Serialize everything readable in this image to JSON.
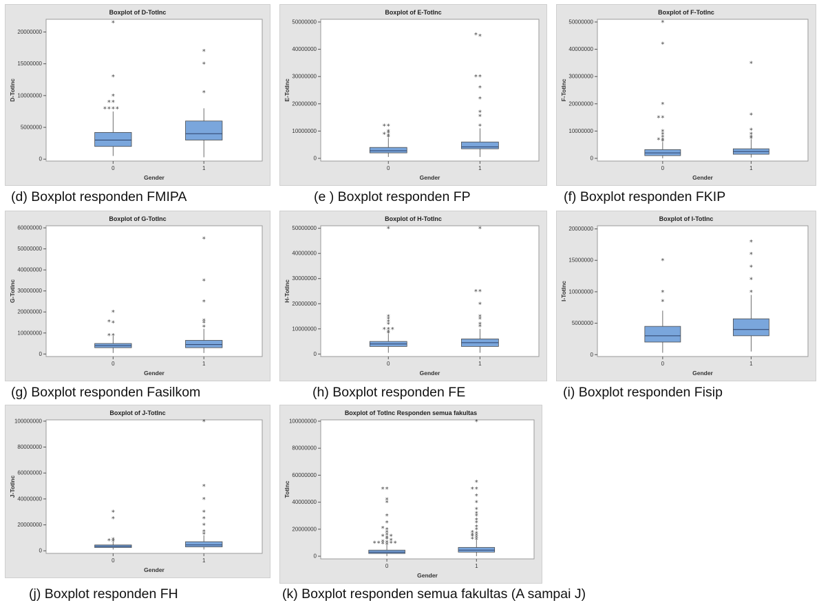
{
  "captions": {
    "d": "(d) Boxplot responden FMIPA",
    "e": "(e ) Boxplot responden FP",
    "f": "(f) Boxplot responden FKIP",
    "g": "(g) Boxplot responden Fasilkom",
    "h": "(h) Boxplot responden FE",
    "i": "(i) Boxplot responden Fisip",
    "j": "(j) Boxplot responden FH",
    "k": "(k) Boxplot responden semua fakultas (A sampai J)"
  },
  "colors": {
    "box": "#7aa6dc",
    "frame": "#e4e4e4",
    "median": "#2a3f66"
  },
  "chart_data": [
    {
      "id": "d",
      "type": "box",
      "title": "Boxplot of D-TotInc",
      "xlabel": "Gender",
      "ylabel": "D-TotInc",
      "categories": [
        "0",
        "1"
      ],
      "yticks": [
        0,
        5000000,
        10000000,
        15000000,
        20000000
      ],
      "ytick_labels": [
        "0",
        "5000000",
        "10000000",
        "15000000",
        "20000000"
      ],
      "ylim": [
        -300000,
        22000000
      ],
      "boxes": [
        {
          "category": "0",
          "whisker_low": 500000,
          "q1": 2000000,
          "median": 3000000,
          "q3": 4200000,
          "whisker_high": 7500000,
          "outliers": [
            8000000,
            8000000,
            8000000,
            8000000,
            9000000,
            9000000,
            10000000,
            13000000,
            21500000
          ]
        },
        {
          "category": "1",
          "whisker_low": 300000,
          "q1": 3000000,
          "median": 4000000,
          "q3": 6000000,
          "whisker_high": 8000000,
          "outliers": [
            10500000,
            15000000,
            17000000
          ]
        }
      ]
    },
    {
      "id": "e",
      "type": "box",
      "title": "Boxplot of E-TotInc",
      "xlabel": "Gender",
      "ylabel": "E-TotInc",
      "categories": [
        "0",
        "1"
      ],
      "yticks": [
        0,
        10000000,
        20000000,
        30000000,
        40000000,
        50000000
      ],
      "ytick_labels": [
        "0",
        "10000000",
        "20000000",
        "30000000",
        "40000000",
        "50000000"
      ],
      "ylim": [
        -1000000,
        51000000
      ],
      "boxes": [
        {
          "category": "0",
          "whisker_low": 500000,
          "q1": 2000000,
          "median": 2800000,
          "q3": 4000000,
          "whisker_high": 7500000,
          "outliers": [
            8000000,
            8500000,
            9000000,
            9500000,
            10000000,
            12000000,
            12000000
          ]
        },
        {
          "category": "1",
          "whisker_low": 500000,
          "q1": 3500000,
          "median": 4200000,
          "q3": 6000000,
          "whisker_high": 11000000,
          "outliers": [
            12000000,
            15500000,
            17000000,
            22000000,
            26000000,
            30000000,
            30000000,
            45000000,
            45500000
          ]
        }
      ]
    },
    {
      "id": "f",
      "type": "box",
      "title": "Boxplot of F-TotInc",
      "xlabel": "Gender",
      "ylabel": "F-TotInc",
      "categories": [
        "0",
        "1"
      ],
      "yticks": [
        0,
        10000000,
        20000000,
        30000000,
        40000000,
        50000000
      ],
      "ytick_labels": [
        "0",
        "10000000",
        "20000000",
        "30000000",
        "40000000",
        "50000000"
      ],
      "ylim": [
        -1000000,
        51000000
      ],
      "boxes": [
        {
          "category": "0",
          "whisker_low": 0,
          "q1": 1000000,
          "median": 2000000,
          "q3": 3200000,
          "whisker_high": 6000000,
          "outliers": [
            6500000,
            7000000,
            7000000,
            8000000,
            9000000,
            10000000,
            15000000,
            15000000,
            20000000,
            42000000,
            50000000
          ]
        },
        {
          "category": "1",
          "whisker_low": 300000,
          "q1": 1500000,
          "median": 2500000,
          "q3": 3500000,
          "whisker_high": 7000000,
          "outliers": [
            7500000,
            8000000,
            9000000,
            10500000,
            16000000,
            35000000
          ]
        }
      ]
    },
    {
      "id": "g",
      "type": "box",
      "title": "Boxplot of G-TotInc",
      "xlabel": "Gender",
      "ylabel": "G-TotInc",
      "categories": [
        "0",
        "1"
      ],
      "yticks": [
        0,
        10000000,
        20000000,
        30000000,
        40000000,
        50000000,
        60000000
      ],
      "ytick_labels": [
        "0",
        "10000000",
        "20000000",
        "30000000",
        "40000000",
        "50000000",
        "60000000"
      ],
      "ylim": [
        -1200000,
        61000000
      ],
      "boxes": [
        {
          "category": "0",
          "whisker_low": 500000,
          "q1": 3000000,
          "median": 4000000,
          "q3": 5000000,
          "whisker_high": 8500000,
          "outliers": [
            9000000,
            9000000,
            15000000,
            15500000,
            20000000
          ]
        },
        {
          "category": "1",
          "whisker_low": 500000,
          "q1": 3000000,
          "median": 4500000,
          "q3": 6500000,
          "whisker_high": 12000000,
          "outliers": [
            13000000,
            15000000,
            16000000,
            25000000,
            35000000,
            55000000
          ]
        }
      ]
    },
    {
      "id": "h",
      "type": "box",
      "title": "Boxplot of H-TotInc",
      "xlabel": "Gender",
      "ylabel": "H-TotInc",
      "categories": [
        "0",
        "1"
      ],
      "yticks": [
        0,
        10000000,
        20000000,
        30000000,
        40000000,
        50000000
      ],
      "ytick_labels": [
        "0",
        "10000000",
        "20000000",
        "30000000",
        "40000000",
        "50000000"
      ],
      "ylim": [
        -1000000,
        51000000
      ],
      "boxes": [
        {
          "category": "0",
          "whisker_low": 500000,
          "q1": 3000000,
          "median": 4000000,
          "q3": 5000000,
          "whisker_high": 8000000,
          "outliers": [
            8500000,
            9000000,
            10000000,
            10000000,
            10000000,
            12000000,
            13000000,
            14000000,
            15000000,
            50000000
          ]
        },
        {
          "category": "1",
          "whisker_low": 500000,
          "q1": 3000000,
          "median": 4500000,
          "q3": 6000000,
          "whisker_high": 10000000,
          "outliers": [
            11000000,
            12000000,
            14000000,
            15000000,
            20000000,
            25000000,
            25000000,
            50000000
          ]
        }
      ]
    },
    {
      "id": "i",
      "type": "box",
      "title": "Boxplot of I-TotInc",
      "xlabel": "Gender",
      "ylabel": "I-TotInc",
      "categories": [
        "0",
        "1"
      ],
      "yticks": [
        0,
        5000000,
        10000000,
        15000000,
        20000000
      ],
      "ytick_labels": [
        "0",
        "5000000",
        "10000000",
        "15000000",
        "20000000"
      ],
      "ylim": [
        -300000,
        20500000
      ],
      "boxes": [
        {
          "category": "0",
          "whisker_low": 300000,
          "q1": 2000000,
          "median": 3000000,
          "q3": 4500000,
          "whisker_high": 7000000,
          "outliers": [
            8500000,
            10000000,
            15000000
          ]
        },
        {
          "category": "1",
          "whisker_low": 500000,
          "q1": 3000000,
          "median": 4000000,
          "q3": 5700000,
          "whisker_high": 9500000,
          "outliers": [
            10000000,
            12000000,
            14000000,
            16000000,
            18000000
          ]
        }
      ]
    },
    {
      "id": "j",
      "type": "box",
      "title": "Boxplot of J-TotInc",
      "xlabel": "Gender",
      "ylabel": "J-TotInc",
      "categories": [
        "0",
        "1"
      ],
      "yticks": [
        0,
        20000000,
        40000000,
        60000000,
        80000000,
        100000000
      ],
      "ytick_labels": [
        "0",
        "20000000",
        "40000000",
        "60000000",
        "80000000",
        "100000000"
      ],
      "ylim": [
        -2000000,
        101000000
      ],
      "boxes": [
        {
          "category": "0",
          "whisker_low": 1000000,
          "q1": 2500000,
          "median": 3500000,
          "q3": 4500000,
          "whisker_high": 7000000,
          "outliers": [
            7500000,
            8000000,
            9000000,
            25000000,
            30000000
          ]
        },
        {
          "category": "1",
          "whisker_low": 1000000,
          "q1": 3000000,
          "median": 4500000,
          "q3": 7000000,
          "whisker_high": 12000000,
          "outliers": [
            13000000,
            15000000,
            20000000,
            25000000,
            30000000,
            40000000,
            50000000,
            100000000
          ]
        }
      ]
    },
    {
      "id": "k",
      "type": "box",
      "title": "Boxplot of TotInc Responden semua fakultas",
      "xlabel": "Gender",
      "ylabel": "TotInc",
      "categories": [
        "0",
        "1"
      ],
      "yticks": [
        0,
        20000000,
        40000000,
        60000000,
        80000000,
        100000000
      ],
      "ytick_labels": [
        "0",
        "20000000",
        "40000000",
        "60000000",
        "80000000",
        "100000000"
      ],
      "ylim": [
        -2000000,
        101000000
      ],
      "boxes": [
        {
          "category": "0",
          "whisker_low": 0,
          "q1": 2000000,
          "median": 3000000,
          "q3": 4500000,
          "whisker_high": 8500000,
          "outliers": [
            9000000,
            9500000,
            10000000,
            10000000,
            10000000,
            10000000,
            10500000,
            11000000,
            12000000,
            13000000,
            14000000,
            15000000,
            15000000,
            16000000,
            18000000,
            20000000,
            21000000,
            25000000,
            30000000,
            40000000,
            42000000,
            50000000,
            50000000
          ]
        },
        {
          "category": "1",
          "whisker_low": 0,
          "q1": 3000000,
          "median": 4500000,
          "q3": 6500000,
          "whisker_high": 12000000,
          "outliers": [
            12500000,
            13000000,
            14000000,
            15000000,
            15500000,
            16000000,
            17000000,
            18000000,
            20000000,
            22000000,
            25000000,
            27000000,
            30000000,
            32000000,
            35000000,
            40000000,
            45000000,
            50000000,
            50000000,
            55000000,
            100000000
          ]
        }
      ]
    }
  ]
}
